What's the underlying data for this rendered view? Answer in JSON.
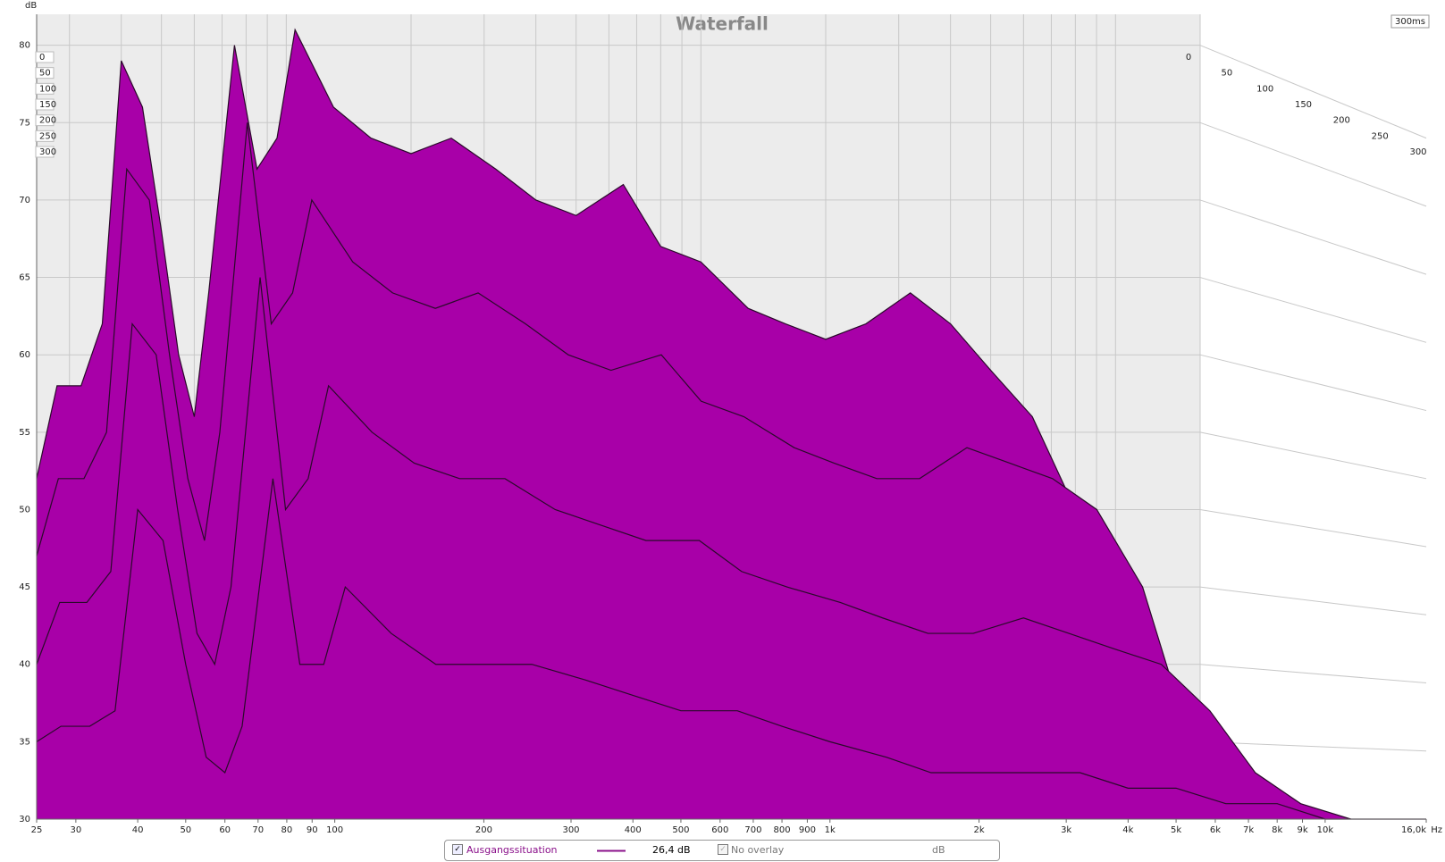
{
  "chart_data": {
    "type": "waterfall",
    "title": "Waterfall",
    "y_label": "dB",
    "x_unit": "Hz",
    "depth_label": "300ms",
    "x": [
      25,
      28,
      32,
      36,
      40,
      45,
      50,
      55,
      60,
      65,
      75,
      85,
      95,
      105,
      130,
      160,
      200,
      250,
      320,
      400,
      500,
      650,
      800,
      1000,
      1300,
      1600,
      2000,
      2500,
      3200,
      4000,
      5000,
      6300,
      8000,
      10000,
      12500,
      16000
    ],
    "slices": [
      {
        "t": 0,
        "values": [
          52,
          58,
          58,
          62,
          79,
          76,
          68,
          60,
          56,
          64,
          80,
          72,
          74,
          81,
          76,
          74,
          73,
          74,
          72,
          70,
          69,
          71,
          67,
          66,
          63,
          62,
          61,
          62,
          64,
          62,
          59,
          56,
          50,
          40,
          33,
          30
        ]
      },
      {
        "t": 100,
        "values": [
          47,
          52,
          52,
          55,
          72,
          70,
          60,
          52,
          48,
          55,
          75,
          62,
          64,
          70,
          66,
          64,
          63,
          64,
          62,
          60,
          59,
          60,
          57,
          56,
          54,
          53,
          52,
          52,
          54,
          53,
          52,
          50,
          45,
          36,
          32,
          30
        ]
      },
      {
        "t": 200,
        "values": [
          40,
          44,
          44,
          46,
          62,
          60,
          50,
          42,
          40,
          45,
          65,
          50,
          52,
          58,
          55,
          53,
          52,
          52,
          50,
          49,
          48,
          48,
          46,
          45,
          44,
          43,
          42,
          42,
          43,
          42,
          41,
          40,
          37,
          33,
          31,
          30
        ]
      },
      {
        "t": 300,
        "values": [
          35,
          36,
          36,
          37,
          50,
          48,
          40,
          34,
          33,
          36,
          52,
          40,
          40,
          45,
          42,
          40,
          40,
          40,
          39,
          38,
          37,
          37,
          36,
          35,
          34,
          33,
          33,
          33,
          33,
          32,
          32,
          31,
          31,
          30,
          30,
          30
        ]
      }
    ],
    "color": "#a800a8",
    "line_color": "#2a0a2a",
    "xlim": [
      25,
      16000
    ],
    "ylim": [
      30,
      82
    ],
    "zlim": [
      0,
      300
    ],
    "yticks": [
      30,
      35,
      40,
      45,
      50,
      55,
      60,
      65,
      70,
      75,
      80
    ],
    "zticks": [
      0,
      50,
      100,
      150,
      200,
      250,
      300
    ],
    "xticks": [
      25,
      30,
      40,
      50,
      60,
      70,
      80,
      90,
      100,
      200,
      300,
      400,
      500,
      600,
      700,
      800,
      900,
      {
        "value": 1000,
        "label": "1k"
      },
      {
        "value": 2000,
        "label": "2k"
      },
      {
        "value": 3000,
        "label": "3k"
      },
      {
        "value": 4000,
        "label": "4k"
      },
      {
        "value": 5000,
        "label": "5k"
      },
      {
        "value": 6000,
        "label": "6k"
      },
      {
        "value": 7000,
        "label": "7k"
      },
      {
        "value": 8000,
        "label": "8k"
      },
      {
        "value": 9000,
        "label": "9k"
      },
      {
        "value": 10000,
        "label": "10k"
      },
      {
        "value": 16000,
        "label": "16,0k"
      }
    ],
    "grid": true,
    "legend": {
      "name": "Ausgangssituation",
      "color": "#8a108a",
      "readout": "26,4 dB",
      "overlay": "No overlay",
      "overlay_unit": "dB"
    }
  }
}
